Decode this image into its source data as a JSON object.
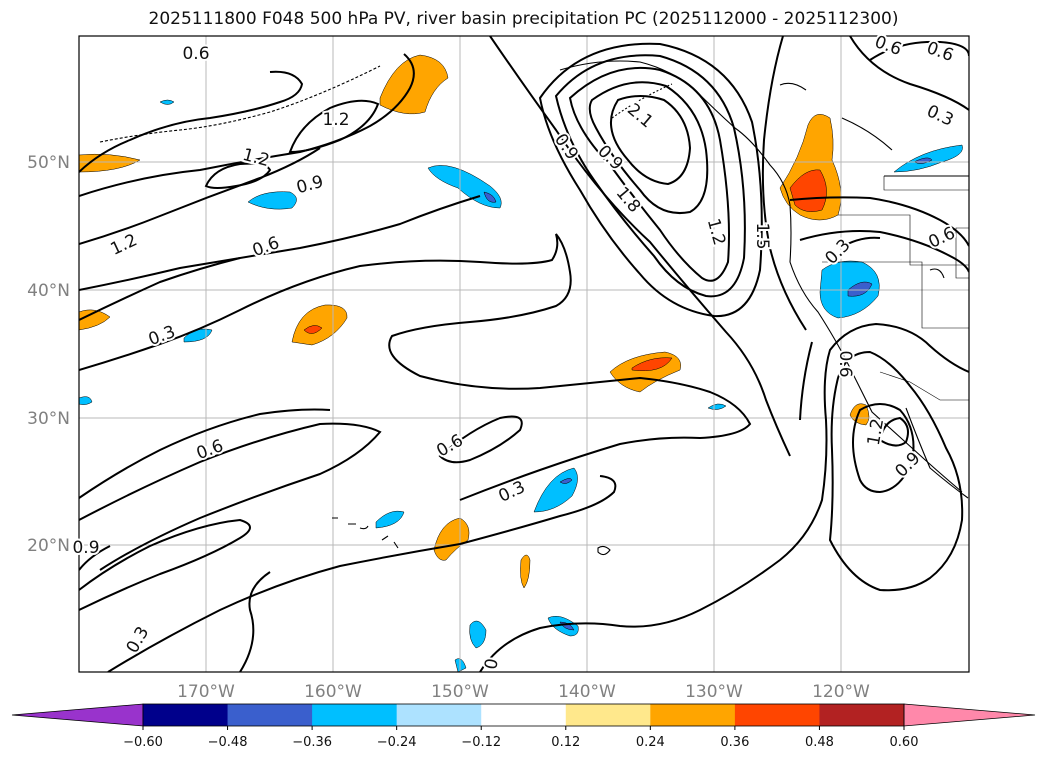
{
  "title": "2025111800 F048 500 hPa PV, river basin precipitation PC (2025112000 - 2025112300)",
  "lat_labels": [
    "50°N",
    "40°N",
    "30°N",
    "20°N"
  ],
  "lon_labels": [
    "170°W",
    "160°W",
    "150°W",
    "140°W",
    "130°W",
    "120°W"
  ],
  "colorbar": {
    "colors": [
      "#9933cc",
      "#00008b",
      "#3a5fcd",
      "#00bfff",
      "#ade2ff",
      "#ffffff",
      "#ffe88c",
      "#ffa500",
      "#ff4500",
      "#b22222",
      "#ff88aa"
    ],
    "tick_labels": [
      "−0.60",
      "−0.48",
      "−0.36",
      "−0.24",
      "−0.12",
      "0.12",
      "0.24",
      "0.36",
      "0.48",
      "0.60"
    ]
  },
  "contour_labels": [
    {
      "text": "0.6"
    },
    {
      "text": "1.2"
    },
    {
      "text": "1.2"
    },
    {
      "text": "0.9"
    },
    {
      "text": "1.2"
    },
    {
      "text": "0.6"
    },
    {
      "text": "0.3"
    },
    {
      "text": "0.6"
    },
    {
      "text": "0.6"
    },
    {
      "text": "0.3"
    },
    {
      "text": "0.3"
    },
    {
      "text": "0.9"
    },
    {
      "text": "2.1"
    },
    {
      "text": "0.9"
    },
    {
      "text": "1.8"
    },
    {
      "text": "1.2"
    },
    {
      "text": "1.5"
    },
    {
      "text": "0.6"
    },
    {
      "text": "0.6"
    },
    {
      "text": "0.6"
    },
    {
      "text": "0.3"
    },
    {
      "text": "0.3"
    },
    {
      "text": "0.6"
    },
    {
      "text": "0.9"
    },
    {
      "text": "1.2"
    },
    {
      "text": "0.9"
    },
    {
      "text": "0"
    }
  ]
}
